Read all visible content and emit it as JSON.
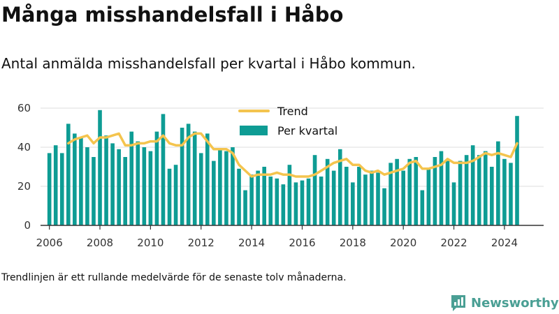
{
  "title": "Många misshandelsfall i Håbo",
  "subtitle": "Antal anmälda misshandelsfall per kvartal i Håbo kommun.",
  "footnote": "Trendlinjen är ett rullande medelvärde för de senaste tolv månaderna.",
  "brand": "Newsworthy",
  "colors": {
    "bars": "#0e9c94",
    "trend": "#f4c44e",
    "brand": "#4a9f94",
    "grid": "#dddddd",
    "axis": "#333333"
  },
  "chart_data": {
    "type": "bar",
    "title": "Många misshandelsfall i Håbo",
    "subtitle": "Antal anmälda misshandelsfall per kvartal i Håbo kommun.",
    "xlabel": "",
    "ylabel": "",
    "ylim": [
      0,
      60
    ],
    "yticks": [
      0,
      20,
      40,
      60
    ],
    "xlim": [
      2005.65,
      2025.55
    ],
    "xticks": [
      2006,
      2008,
      2010,
      2012,
      2014,
      2016,
      2018,
      2020,
      2022,
      2024
    ],
    "grid": true,
    "legend_position": "top-center",
    "x": [
      2006.0,
      2006.25,
      2006.5,
      2006.75,
      2007.0,
      2007.25,
      2007.5,
      2007.75,
      2008.0,
      2008.25,
      2008.5,
      2008.75,
      2009.0,
      2009.25,
      2009.5,
      2009.75,
      2010.0,
      2010.25,
      2010.5,
      2010.75,
      2011.0,
      2011.25,
      2011.5,
      2011.75,
      2012.0,
      2012.25,
      2012.5,
      2012.75,
      2013.0,
      2013.25,
      2013.5,
      2013.75,
      2014.0,
      2014.25,
      2014.5,
      2014.75,
      2015.0,
      2015.25,
      2015.5,
      2015.75,
      2016.0,
      2016.25,
      2016.5,
      2016.75,
      2017.0,
      2017.25,
      2017.5,
      2017.75,
      2018.0,
      2018.25,
      2018.5,
      2018.75,
      2019.0,
      2019.25,
      2019.5,
      2019.75,
      2020.0,
      2020.25,
      2020.5,
      2020.75,
      2021.0,
      2021.25,
      2021.5,
      2021.75,
      2022.0,
      2022.25,
      2022.5,
      2022.75,
      2023.0,
      2023.25,
      2023.5,
      2023.75,
      2024.0,
      2024.25,
      2024.5
    ],
    "series": [
      {
        "name": "Per kvartal",
        "type": "bar",
        "values": [
          37,
          41,
          37,
          52,
          47,
          45,
          40,
          35,
          59,
          46,
          42,
          39,
          35,
          48,
          43,
          40,
          38,
          48,
          57,
          29,
          31,
          50,
          52,
          48,
          37,
          47,
          33,
          39,
          38,
          40,
          29,
          18,
          26,
          28,
          30,
          25,
          24,
          21,
          31,
          22,
          23,
          24,
          36,
          25,
          34,
          28,
          39,
          30,
          22,
          30,
          26,
          28,
          27,
          19,
          32,
          34,
          28,
          34,
          35,
          18,
          29,
          35,
          38,
          33,
          22,
          33,
          36,
          41,
          36,
          38,
          30,
          43,
          34,
          32,
          56
        ]
      },
      {
        "name": "Trend",
        "type": "line",
        "values": [
          null,
          null,
          null,
          42,
          44,
          45,
          46,
          42,
          45,
          45,
          46,
          47,
          41,
          41,
          42,
          42,
          43,
          43,
          46,
          42,
          41,
          41,
          45,
          47,
          47,
          43,
          39,
          39,
          39,
          37,
          31,
          28,
          25,
          26,
          26,
          26,
          27,
          26,
          26,
          25,
          25,
          25,
          26,
          28,
          30,
          32,
          33,
          34,
          31,
          31,
          28,
          27,
          28,
          26,
          27,
          28,
          29,
          32,
          33,
          29,
          29,
          30,
          31,
          34,
          32,
          32,
          32,
          33,
          35,
          37,
          36,
          37,
          36,
          35,
          42
        ]
      }
    ]
  }
}
